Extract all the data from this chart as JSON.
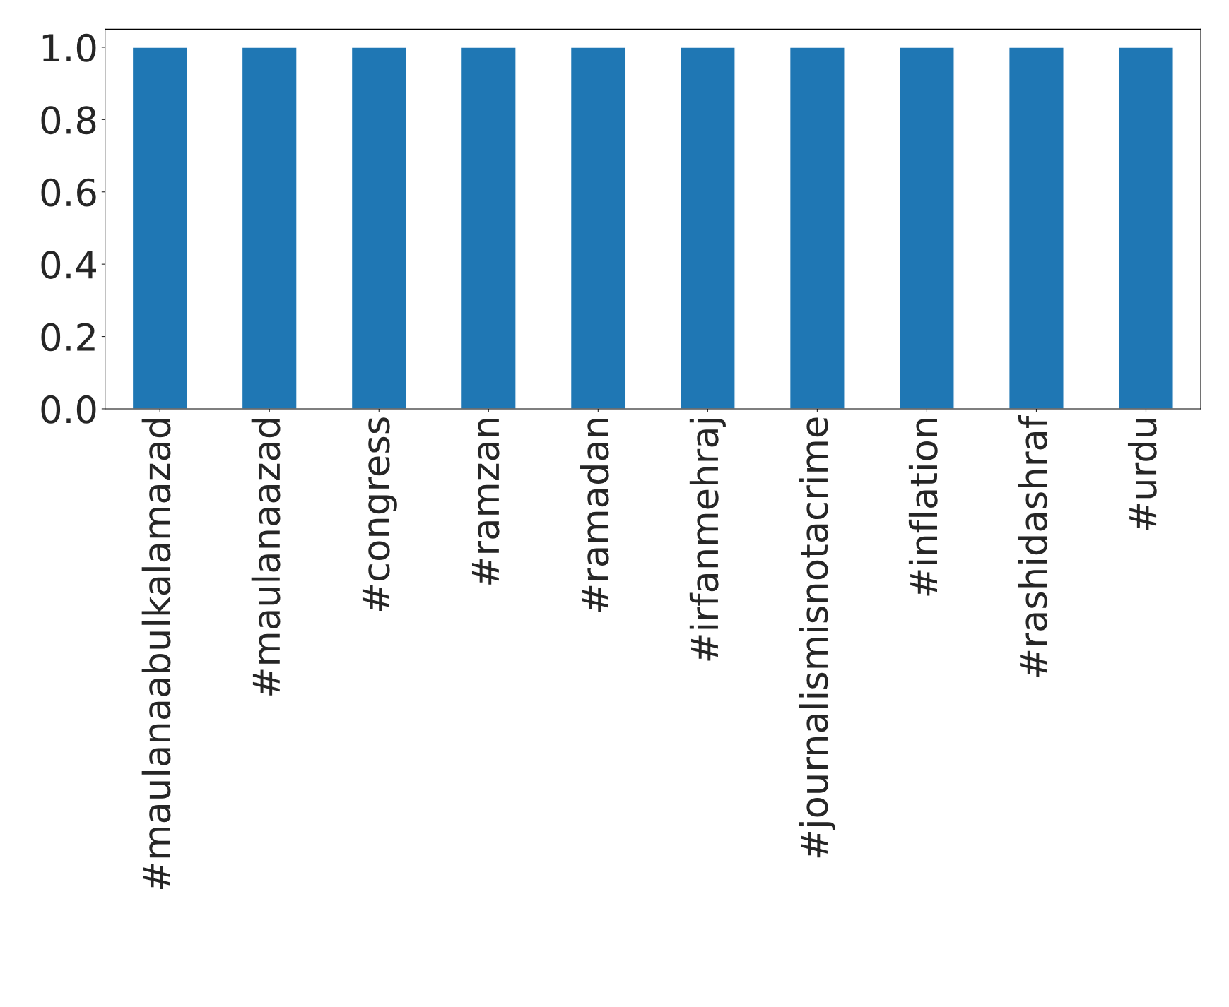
{
  "chart_data": {
    "type": "bar",
    "categories": [
      "#maulanaabulkalamazad",
      "#maulanaazad",
      "#congress",
      "#ramzan",
      "#ramadan",
      "#irfanmehraj",
      "#journalismisnotacrime",
      "#inflation",
      "#rashidashraf",
      "#urdu"
    ],
    "values": [
      1,
      1,
      1,
      1,
      1,
      1,
      1,
      1,
      1,
      1
    ],
    "color": "#1f77b4",
    "ylim": [
      0,
      1.05
    ],
    "yticks": [
      {
        "value": 0,
        "label": "0.0"
      },
      {
        "value": 0.2,
        "label": "0.2"
      },
      {
        "value": 0.4,
        "label": "0.4"
      },
      {
        "value": 0.6,
        "label": "0.6"
      },
      {
        "value": 0.8,
        "label": "0.8"
      },
      {
        "value": 1,
        "label": "1.0"
      }
    ],
    "grid": false
  }
}
